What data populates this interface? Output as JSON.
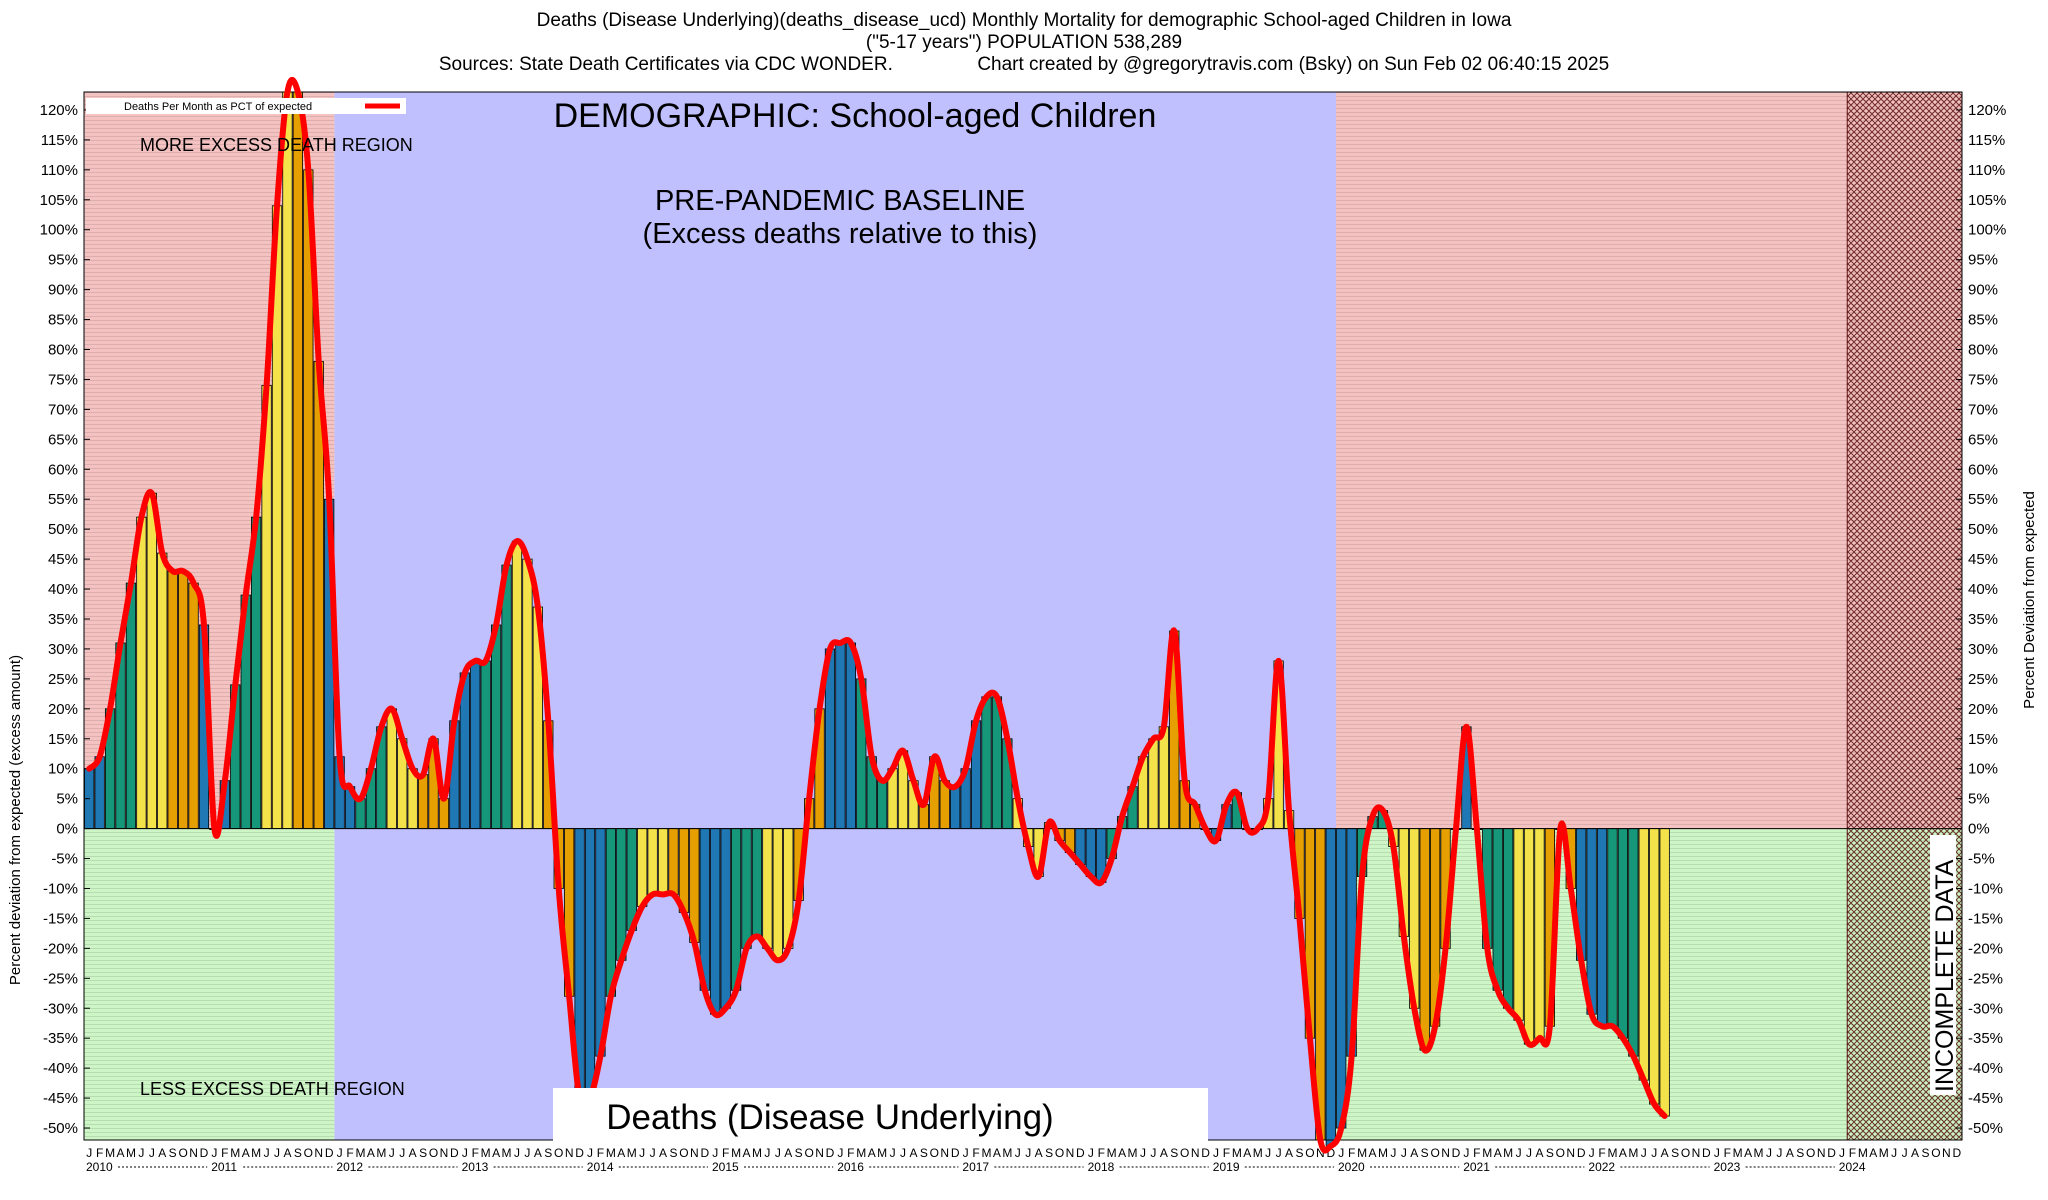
{
  "header": {
    "title_line1": "Deaths (Disease Underlying)(deaths_disease_ucd) Monthly Mortality for demographic School-aged Children in Iowa",
    "title_line2": "(\"5-17 years\") POPULATION 538,289",
    "title_line3": "Sources: State Death Certificates via CDC WONDER.                Chart created by @gregorytravis.com (Bsky) on Sun Feb 02 06:40:15 2025"
  },
  "annotations": {
    "demographic": "DEMOGRAPHIC: School-aged Children",
    "baseline_line1": "PRE-PANDEMIC BASELINE",
    "baseline_line2": "(Excess deaths relative to this)",
    "more_region": "MORE EXCESS DEATH REGION",
    "less_region": "LESS EXCESS DEATH REGION",
    "cause_box": "Deaths (Disease Underlying)",
    "incomplete": "INCOMPLETE DATA"
  },
  "colors": {
    "more_region": "#f5c2c2",
    "less_region": "#cdf5c6",
    "baseline_region": "#c0c0ff",
    "line": "#ff0000",
    "bar_winter": "#1f77b4",
    "bar_spring": "#17977a",
    "bar_summer": "#f3e24a",
    "bar_fall": "#e69f00",
    "incomplete_hatch": "#7a1a1a"
  },
  "chart_data": {
    "type": "bar",
    "title": "Deaths (Disease Underlying)(deaths_disease_ucd) Monthly Mortality for demographic School-aged Children in Iowa",
    "ylabel": "Percent deviation from expected (excess amount)",
    "ylabel_right": "Percent Deviation from expected",
    "legend_label": "Deaths Per Month as PCT of expected",
    "legend_position": "top-left",
    "ylim": [
      -52,
      123
    ],
    "yticks": [
      -50,
      -45,
      -40,
      -35,
      -30,
      -25,
      -20,
      -15,
      -10,
      -5,
      0,
      5,
      10,
      15,
      20,
      25,
      30,
      35,
      40,
      45,
      50,
      55,
      60,
      65,
      70,
      75,
      80,
      85,
      90,
      95,
      100,
      105,
      110,
      115,
      120
    ],
    "month_letters": [
      "J",
      "F",
      "M",
      "A",
      "M",
      "J",
      "J",
      "A",
      "S",
      "O",
      "N",
      "D"
    ],
    "years": [
      "2010",
      "2011",
      "2012",
      "2013",
      "2014",
      "2015",
      "2016",
      "2017",
      "2018",
      "2019",
      "2020",
      "2021",
      "2022",
      "2023",
      "2024"
    ],
    "regions": [
      {
        "name": "more-excess-period-1",
        "start": "2010-01",
        "end": "2011-12"
      },
      {
        "name": "pre-pandemic-baseline",
        "start": "2012-01",
        "end": "2019-12"
      },
      {
        "name": "more-excess-period-2",
        "start": "2020-01",
        "end": "2024-12"
      },
      {
        "name": "incomplete-data",
        "start": "2024-02",
        "end": "2024-12"
      }
    ],
    "series": [
      {
        "name": "Deaths Per Month as PCT of expected",
        "start": "2010-01",
        "values": [
          10,
          12,
          20,
          31,
          41,
          52,
          56,
          46,
          43,
          43,
          41,
          34,
          0,
          8,
          24,
          39,
          52,
          74,
          104,
          123,
          123,
          110,
          78,
          55,
          12,
          7,
          5,
          10,
          17,
          20,
          15,
          10,
          9,
          15,
          5,
          18,
          26,
          28,
          28,
          34,
          44,
          48,
          45,
          37,
          18,
          -10,
          -28,
          -45,
          -45,
          -38,
          -28,
          -22,
          -17,
          -13,
          -11,
          -11,
          -11,
          -14,
          -19,
          -27,
          -31,
          -30,
          -27,
          -20,
          -18,
          -20,
          -22,
          -20,
          -12,
          5,
          20,
          30,
          31,
          31,
          25,
          12,
          8,
          10,
          13,
          8,
          4,
          12,
          8,
          7,
          10,
          18,
          22,
          22,
          15,
          5,
          -3,
          -8,
          1,
          -2,
          -4,
          -6,
          -8,
          -9,
          -5,
          2,
          7,
          12,
          15,
          17,
          33,
          8,
          4,
          0,
          -2,
          4,
          6,
          0,
          0,
          5,
          28,
          3,
          -15,
          -35,
          -52,
          -53,
          -50,
          -38,
          -8,
          2,
          3,
          -3,
          -18,
          -30,
          -37,
          -33,
          -20,
          0,
          17,
          0,
          -20,
          -27,
          -30,
          -32,
          -36,
          -35,
          -33,
          0,
          -10,
          -22,
          -31,
          -33,
          -33,
          -35,
          -38,
          -42,
          -46,
          -48
        ]
      }
    ]
  }
}
